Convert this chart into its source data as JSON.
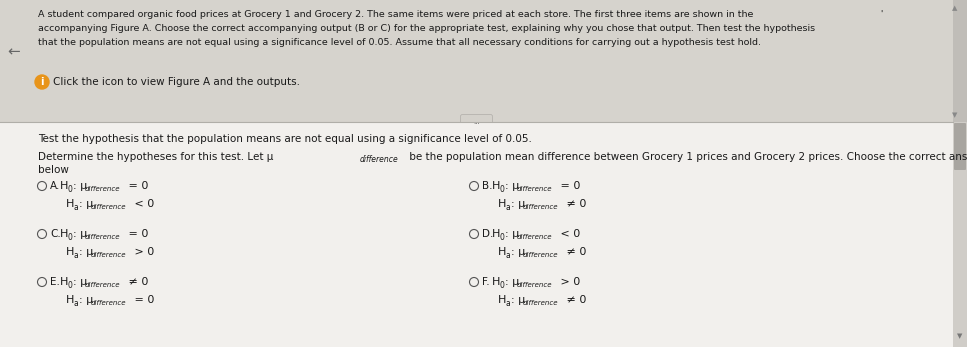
{
  "bg_outer": "#c8c5bf",
  "bg_top": "#d6d3cd",
  "bg_bottom": "#f2f0ed",
  "bg_divider": "#e0ddd8",
  "text_dark": "#1a1a1a",
  "text_gray": "#444444",
  "radio_color": "#555555",
  "info_icon_bg": "#e8941a",
  "scrollbar_bg": "#c8c5bf",
  "scrollbar_thumb": "#a0a0a0",
  "arrow_color": "#666666",
  "divider_line": "#b0aea8",
  "title_line1": "A student compared organic food prices at Grocery 1 and Grocery 2. The same items were priced at each store. The first three items are shown in the",
  "title_line2": "accompanying Figure A. Choose the correct accompanying output (B or C) for the appropriate test, explaining why you chose that output. Then test the hypothesis",
  "title_line3": "that the population means are not equal using a significance level of 0.05. Assume that all necessary conditions for carrying out a hypothesis test hold.",
  "info_text": "Click the icon to view Figure A and the outputs.",
  "body1": "Test the hypothesis that the population means are not equal using a significance level of 0.05.",
  "body2a": "Determine the hypotheses for this test. Let μ",
  "body2b": "difference",
  "body2c": " be the population mean difference between Grocery 1 prices and Grocery 2 prices. Choose the correct answer",
  "body2d": "below",
  "options": [
    {
      "label": "A.",
      "h0_pre": "H",
      "h0_sub0": "0",
      "h0_mu": ": μ",
      "h0_sub": "difference",
      "h0_eq": " = 0",
      "ha_pre": "H",
      "ha_sub0": "a",
      "ha_mu": ": μ",
      "ha_sub": "difference",
      "ha_eq": " < 0",
      "col": 0,
      "row": 0
    },
    {
      "label": "B.",
      "h0_pre": "H",
      "h0_sub0": "0",
      "h0_mu": ": μ",
      "h0_sub": "difference",
      "h0_eq": " = 0",
      "ha_pre": "H",
      "ha_sub0": "a",
      "ha_mu": ": μ",
      "ha_sub": "difference",
      "ha_eq": " ≠ 0",
      "col": 1,
      "row": 0
    },
    {
      "label": "C.",
      "h0_pre": "H",
      "h0_sub0": "0",
      "h0_mu": ": μ",
      "h0_sub": "difference",
      "h0_eq": " = 0",
      "ha_pre": "H",
      "ha_sub0": "a",
      "ha_mu": ": μ",
      "ha_sub": "difference",
      "ha_eq": " > 0",
      "col": 0,
      "row": 1
    },
    {
      "label": "D.",
      "h0_pre": "H",
      "h0_sub0": "0",
      "h0_mu": ": μ",
      "h0_sub": "difference",
      "h0_eq": " < 0",
      "ha_pre": "H",
      "ha_sub0": "a",
      "ha_mu": ": μ",
      "ha_sub": "difference",
      "ha_eq": " ≠ 0",
      "col": 1,
      "row": 1
    },
    {
      "label": "E.",
      "h0_pre": "H",
      "h0_sub0": "0",
      "h0_mu": ": μ",
      "h0_sub": "difference",
      "h0_eq": " ≠ 0",
      "ha_pre": "H",
      "ha_sub0": "a",
      "ha_mu": ": μ",
      "ha_sub": "difference",
      "ha_eq": " = 0",
      "col": 0,
      "row": 2
    },
    {
      "label": "F.",
      "h0_pre": "H",
      "h0_sub0": "0",
      "h0_mu": ": μ",
      "h0_sub": "difference",
      "h0_eq": " > 0",
      "ha_pre": "H",
      "ha_sub0": "a",
      "ha_mu": ": μ",
      "ha_sub": "difference",
      "ha_eq": " ≠ 0",
      "col": 1,
      "row": 2
    }
  ]
}
